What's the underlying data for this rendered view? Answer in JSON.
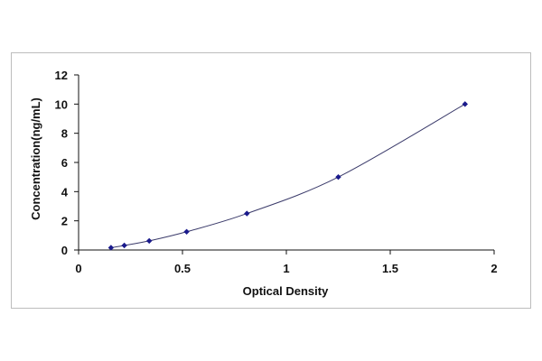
{
  "chart_data": {
    "type": "scatter",
    "title": "",
    "xlabel": "Optical Density",
    "ylabel": "Concentration(ng/mL)",
    "xlim": [
      0,
      2
    ],
    "ylim": [
      0,
      12
    ],
    "x_ticks": [
      "0",
      "0.5",
      "1",
      "1.5",
      "2"
    ],
    "y_ticks": [
      "0",
      "2",
      "4",
      "6",
      "8",
      "10",
      "12"
    ],
    "grid": false,
    "legend": "none",
    "series": [
      {
        "x": [
          0.156,
          0.22,
          0.34,
          0.52,
          0.81,
          1.25,
          1.86
        ],
        "y": [
          0.156,
          0.312,
          0.625,
          1.25,
          2.5,
          5,
          10
        ],
        "fit_curve": true
      }
    ],
    "colors": {
      "marker": "#1a1a8c",
      "curve": "#3a3a6a",
      "axis": "#111111"
    }
  }
}
